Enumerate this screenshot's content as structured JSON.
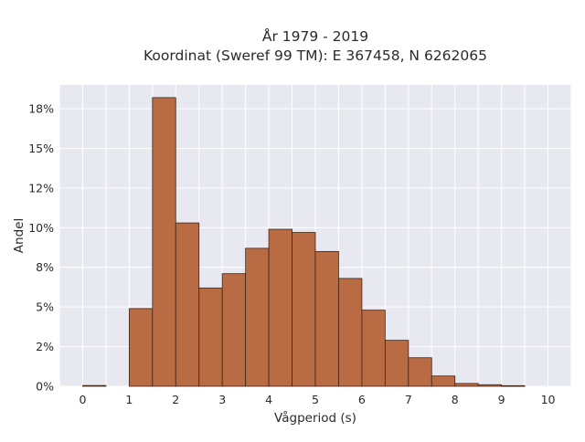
{
  "chart_data": {
    "type": "bar",
    "title_lines": [
      "År 1979 - 2019",
      "Koordinat (Sweref 99 TM): E 367458, N 6262065"
    ],
    "xlabel": "Vågperiod (s)",
    "ylabel": "Andel",
    "x_ticks": [
      "0",
      "1",
      "2",
      "3",
      "4",
      "5",
      "6",
      "7",
      "8",
      "9",
      "10"
    ],
    "y_ticks": [
      "0%",
      "2%",
      "5%",
      "8%",
      "10%",
      "12%",
      "15%",
      "18%"
    ],
    "y_tick_values": [
      0,
      2.5,
      5,
      7.5,
      10,
      12.5,
      15,
      17.5
    ],
    "xlim": [
      -0.5,
      10.5
    ],
    "ylim": [
      0,
      19
    ],
    "grid": true,
    "bin_width": 0.5,
    "bins": [
      {
        "start": 0.0,
        "value": 0.05
      },
      {
        "start": 0.5,
        "value": 0.0
      },
      {
        "start": 1.0,
        "value": 4.9
      },
      {
        "start": 1.5,
        "value": 18.2
      },
      {
        "start": 2.0,
        "value": 10.3
      },
      {
        "start": 2.5,
        "value": 6.2
      },
      {
        "start": 3.0,
        "value": 7.1
      },
      {
        "start": 3.5,
        "value": 8.7
      },
      {
        "start": 4.0,
        "value": 9.9
      },
      {
        "start": 4.5,
        "value": 9.7
      },
      {
        "start": 5.0,
        "value": 8.5
      },
      {
        "start": 5.5,
        "value": 6.8
      },
      {
        "start": 6.0,
        "value": 4.8
      },
      {
        "start": 6.5,
        "value": 2.9
      },
      {
        "start": 7.0,
        "value": 1.8
      },
      {
        "start": 7.5,
        "value": 0.65
      },
      {
        "start": 8.0,
        "value": 0.18
      },
      {
        "start": 8.5,
        "value": 0.1
      },
      {
        "start": 9.0,
        "value": 0.04
      },
      {
        "start": 9.5,
        "value": 0.0
      }
    ],
    "colors": {
      "bar_fill": "#b96b44",
      "bar_stroke": "#3d2616",
      "plot_background": "#e8e8f1",
      "grid": "#ffffff"
    }
  }
}
